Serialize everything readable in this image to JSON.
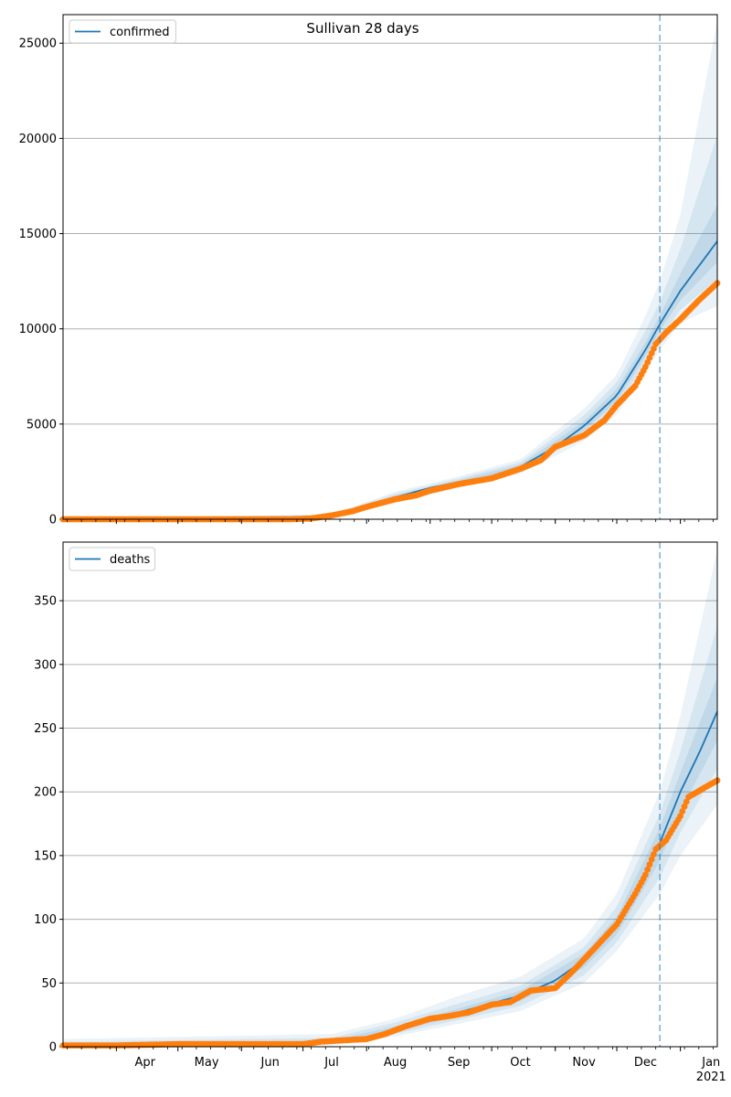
{
  "title": "Sullivan 28 days",
  "colors": {
    "model_line": "#1f77b4",
    "band": "#1f77b4",
    "observed": "#ff7f0e",
    "forecast_marker": "#1f77b4",
    "grid": "#b0b0b0"
  },
  "x_tick_labels": [
    "Apr",
    "May",
    "Jun",
    "Jul",
    "Aug",
    "Sep",
    "Oct",
    "Nov",
    "Dec",
    "Jan"
  ],
  "x_year_label": "2021",
  "chart_data": [
    {
      "type": "line",
      "legend": [
        "confirmed"
      ],
      "legend_position": "top-left",
      "grid": "horizontal",
      "x_range": [
        "2020-03-06",
        "2021-01-19"
      ],
      "ylim": [
        0,
        26500
      ],
      "y_ticks": [
        0,
        5000,
        10000,
        15000,
        20000,
        25000
      ],
      "forecast_start": "2020-12-22",
      "series": [
        {
          "name": "confirmed",
          "role": "model median",
          "points": [
            [
              "2020-03-06",
              0
            ],
            [
              "2020-06-20",
              0
            ],
            [
              "2020-07-01",
              30
            ],
            [
              "2020-07-15",
              180
            ],
            [
              "2020-08-01",
              700
            ],
            [
              "2020-08-15",
              1150
            ],
            [
              "2020-09-01",
              1650
            ],
            [
              "2020-09-15",
              1950
            ],
            [
              "2020-10-01",
              2200
            ],
            [
              "2020-10-15",
              2750
            ],
            [
              "2020-11-01",
              3800
            ],
            [
              "2020-11-15",
              4900
            ],
            [
              "2020-12-01",
              6500
            ],
            [
              "2020-12-15",
              8900
            ],
            [
              "2020-12-22",
              10250
            ],
            [
              "2021-01-01",
              12000
            ],
            [
              "2021-01-19",
              14600
            ]
          ]
        },
        {
          "name": "confirmed",
          "role": "observed",
          "points": [
            [
              "2020-03-06",
              0
            ],
            [
              "2020-06-25",
              0
            ],
            [
              "2020-07-05",
              40
            ],
            [
              "2020-07-15",
              200
            ],
            [
              "2020-07-25",
              420
            ],
            [
              "2020-08-01",
              650
            ],
            [
              "2020-08-15",
              1050
            ],
            [
              "2020-08-25",
              1250
            ],
            [
              "2020-09-01",
              1500
            ],
            [
              "2020-09-15",
              1850
            ],
            [
              "2020-10-01",
              2150
            ],
            [
              "2020-10-15",
              2650
            ],
            [
              "2020-10-25",
              3100
            ],
            [
              "2020-11-01",
              3800
            ],
            [
              "2020-11-15",
              4400
            ],
            [
              "2020-11-25",
              5200
            ],
            [
              "2020-12-01",
              6000
            ],
            [
              "2020-12-10",
              7000
            ],
            [
              "2020-12-15",
              8000
            ],
            [
              "2020-12-20",
              9200
            ],
            [
              "2020-12-25",
              9800
            ],
            [
              "2021-01-01",
              10500
            ],
            [
              "2021-01-10",
              11500
            ],
            [
              "2021-01-19",
              12400
            ]
          ]
        }
      ],
      "uncertainty_bands": [
        {
          "level": "outer",
          "lower": [
            [
              "2020-03-06",
              0
            ],
            [
              "2020-07-15",
              120
            ],
            [
              "2020-08-15",
              900
            ],
            [
              "2020-09-15",
              1650
            ],
            [
              "2020-10-15",
              2400
            ],
            [
              "2020-11-15",
              4100
            ],
            [
              "2020-12-01",
              5500
            ],
            [
              "2020-12-15",
              7700
            ],
            [
              "2020-12-22",
              8900
            ],
            [
              "2021-01-01",
              10300
            ],
            [
              "2021-01-19",
              11200
            ]
          ],
          "upper": [
            [
              "2020-03-06",
              60
            ],
            [
              "2020-07-15",
              260
            ],
            [
              "2020-08-15",
              1450
            ],
            [
              "2020-09-15",
              2250
            ],
            [
              "2020-10-15",
              3150
            ],
            [
              "2020-11-15",
              5800
            ],
            [
              "2020-12-01",
              7600
            ],
            [
              "2020-12-15",
              10700
            ],
            [
              "2020-12-22",
              12500
            ],
            [
              "2021-01-01",
              16000
            ],
            [
              "2021-01-19",
              26200
            ]
          ]
        },
        {
          "level": "middle",
          "lower": [
            [
              "2020-03-06",
              0
            ],
            [
              "2020-07-15",
              140
            ],
            [
              "2020-08-15",
              980
            ],
            [
              "2020-09-15",
              1750
            ],
            [
              "2020-10-15",
              2520
            ],
            [
              "2020-11-15",
              4400
            ],
            [
              "2020-12-01",
              5900
            ],
            [
              "2020-12-15",
              8200
            ],
            [
              "2020-12-22",
              9500
            ],
            [
              "2021-01-01",
              11000
            ],
            [
              "2021-01-19",
              12600
            ]
          ],
          "upper": [
            [
              "2020-03-06",
              40
            ],
            [
              "2020-07-15",
              230
            ],
            [
              "2020-08-15",
              1350
            ],
            [
              "2020-09-15",
              2150
            ],
            [
              "2020-10-15",
              3000
            ],
            [
              "2020-11-15",
              5450
            ],
            [
              "2020-12-01",
              7200
            ],
            [
              "2020-12-15",
              9900
            ],
            [
              "2020-12-22",
              11400
            ],
            [
              "2021-01-01",
              14200
            ],
            [
              "2021-01-19",
              20200
            ]
          ]
        },
        {
          "level": "inner",
          "lower": [
            [
              "2020-03-06",
              0
            ],
            [
              "2020-07-15",
              160
            ],
            [
              "2020-08-15",
              1060
            ],
            [
              "2020-09-15",
              1850
            ],
            [
              "2020-10-15",
              2640
            ],
            [
              "2020-11-15",
              4650
            ],
            [
              "2020-12-01",
              6200
            ],
            [
              "2020-12-15",
              8550
            ],
            [
              "2020-12-22",
              9900
            ],
            [
              "2021-01-01",
              11500
            ],
            [
              "2021-01-19",
              13500
            ]
          ],
          "upper": [
            [
              "2020-03-06",
              20
            ],
            [
              "2020-07-15",
              205
            ],
            [
              "2020-08-15",
              1250
            ],
            [
              "2020-09-15",
              2050
            ],
            [
              "2020-10-15",
              2870
            ],
            [
              "2020-11-15",
              5150
            ],
            [
              "2020-12-01",
              6850
            ],
            [
              "2020-12-15",
              9300
            ],
            [
              "2020-12-22",
              10700
            ],
            [
              "2021-01-01",
              12900
            ],
            [
              "2021-01-19",
              16500
            ]
          ]
        }
      ]
    },
    {
      "type": "line",
      "legend": [
        "deaths"
      ],
      "legend_position": "top-left",
      "grid": "horizontal",
      "x_range": [
        "2020-03-06",
        "2021-01-19"
      ],
      "ylim": [
        0,
        396
      ],
      "y_ticks": [
        0,
        50,
        100,
        150,
        200,
        250,
        300,
        350
      ],
      "forecast_start": "2020-12-22",
      "series": [
        {
          "name": "deaths",
          "role": "model median",
          "points": [
            [
              "2020-03-06",
              1
            ],
            [
              "2020-04-01",
              1
            ],
            [
              "2020-05-01",
              2
            ],
            [
              "2020-06-01",
              2
            ],
            [
              "2020-07-01",
              2
            ],
            [
              "2020-07-15",
              4
            ],
            [
              "2020-08-01",
              7
            ],
            [
              "2020-08-15",
              14
            ],
            [
              "2020-09-01",
              22
            ],
            [
              "2020-09-15",
              27
            ],
            [
              "2020-10-01",
              34
            ],
            [
              "2020-10-15",
              40
            ],
            [
              "2020-11-01",
              52
            ],
            [
              "2020-11-15",
              68
            ],
            [
              "2020-12-01",
              95
            ],
            [
              "2020-12-10",
              120
            ],
            [
              "2020-12-22",
              160
            ],
            [
              "2021-01-01",
              200
            ],
            [
              "2021-01-10",
              230
            ],
            [
              "2021-01-19",
              263
            ]
          ]
        },
        {
          "name": "deaths",
          "role": "observed",
          "points": [
            [
              "2020-03-06",
              1
            ],
            [
              "2020-04-01",
              1
            ],
            [
              "2020-05-01",
              2
            ],
            [
              "2020-06-01",
              2
            ],
            [
              "2020-07-01",
              2
            ],
            [
              "2020-07-10",
              4
            ],
            [
              "2020-07-20",
              5
            ],
            [
              "2020-08-01",
              6
            ],
            [
              "2020-08-10",
              10
            ],
            [
              "2020-08-20",
              16
            ],
            [
              "2020-09-01",
              22
            ],
            [
              "2020-09-10",
              24
            ],
            [
              "2020-09-20",
              27
            ],
            [
              "2020-10-01",
              33
            ],
            [
              "2020-10-10",
              35
            ],
            [
              "2020-10-20",
              44
            ],
            [
              "2020-11-01",
              46
            ],
            [
              "2020-11-10",
              60
            ],
            [
              "2020-11-20",
              77
            ],
            [
              "2020-12-01",
              96
            ],
            [
              "2020-12-10",
              120
            ],
            [
              "2020-12-15",
              135
            ],
            [
              "2020-12-20",
              155
            ],
            [
              "2020-12-25",
              162
            ],
            [
              "2021-01-01",
              181
            ],
            [
              "2021-01-05",
              196
            ],
            [
              "2021-01-19",
              209
            ]
          ]
        }
      ],
      "uncertainty_bands": [
        {
          "level": "outer",
          "lower": [
            [
              "2020-03-06",
              0
            ],
            [
              "2020-07-15",
              1
            ],
            [
              "2020-08-15",
              8
            ],
            [
              "2020-09-15",
              18
            ],
            [
              "2020-10-15",
              28
            ],
            [
              "2020-11-15",
              50
            ],
            [
              "2020-12-01",
              75
            ],
            [
              "2020-12-22",
              120
            ],
            [
              "2021-01-01",
              150
            ],
            [
              "2021-01-19",
              190
            ]
          ],
          "upper": [
            [
              "2020-03-06",
              6
            ],
            [
              "2020-07-15",
              10
            ],
            [
              "2020-08-15",
              22
            ],
            [
              "2020-09-15",
              40
            ],
            [
              "2020-10-15",
              55
            ],
            [
              "2020-11-15",
              85
            ],
            [
              "2020-12-01",
              120
            ],
            [
              "2020-12-22",
              200
            ],
            [
              "2021-01-01",
              260
            ],
            [
              "2021-01-19",
              390
            ]
          ]
        },
        {
          "level": "middle",
          "lower": [
            [
              "2020-03-06",
              0
            ],
            [
              "2020-07-15",
              2
            ],
            [
              "2020-08-15",
              10
            ],
            [
              "2020-09-15",
              21
            ],
            [
              "2020-10-15",
              32
            ],
            [
              "2020-11-15",
              56
            ],
            [
              "2020-12-01",
              82
            ],
            [
              "2020-12-22",
              133
            ],
            [
              "2021-01-01",
              168
            ],
            [
              "2021-01-19",
              218
            ]
          ],
          "upper": [
            [
              "2020-03-06",
              4
            ],
            [
              "2020-07-15",
              7
            ],
            [
              "2020-08-15",
              19
            ],
            [
              "2020-09-15",
              34
            ],
            [
              "2020-10-15",
              48
            ],
            [
              "2020-11-15",
              78
            ],
            [
              "2020-12-01",
              110
            ],
            [
              "2020-12-22",
              183
            ],
            [
              "2021-01-01",
              232
            ],
            [
              "2021-01-19",
              330
            ]
          ]
        },
        {
          "level": "inner",
          "lower": [
            [
              "2020-03-06",
              0
            ],
            [
              "2020-07-15",
              3
            ],
            [
              "2020-08-15",
              12
            ],
            [
              "2020-09-15",
              24
            ],
            [
              "2020-10-15",
              36
            ],
            [
              "2020-11-15",
              62
            ],
            [
              "2020-12-01",
              88
            ],
            [
              "2020-12-22",
              146
            ],
            [
              "2021-01-01",
              185
            ],
            [
              "2021-01-19",
              240
            ]
          ],
          "upper": [
            [
              "2020-03-06",
              2
            ],
            [
              "2020-07-15",
              5
            ],
            [
              "2020-08-15",
              16
            ],
            [
              "2020-09-15",
              30
            ],
            [
              "2020-10-15",
              44
            ],
            [
              "2020-11-15",
              73
            ],
            [
              "2020-12-01",
              102
            ],
            [
              "2020-12-22",
              172
            ],
            [
              "2021-01-01",
              215
            ],
            [
              "2021-01-19",
              290
            ]
          ]
        }
      ]
    }
  ]
}
